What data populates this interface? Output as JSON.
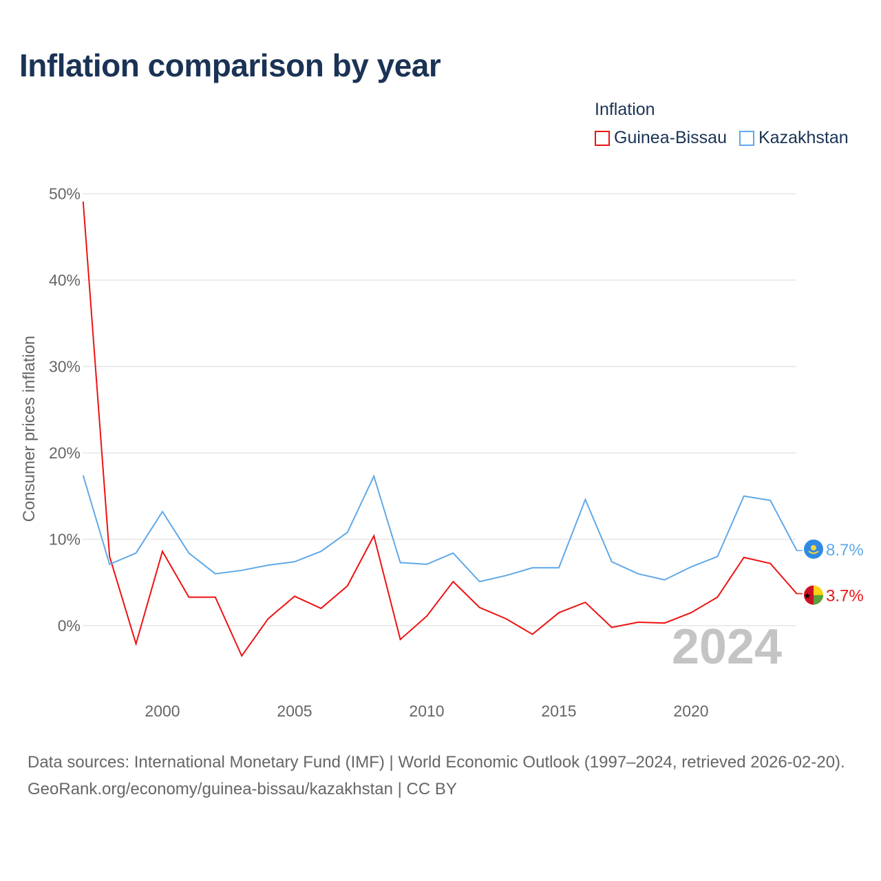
{
  "title": "Inflation comparison by year",
  "legend": {
    "title": "Inflation",
    "items": [
      {
        "label": "Guinea-Bissau",
        "color": "#ee1111"
      },
      {
        "label": "Kazakhstan",
        "color": "#5fa8e8"
      }
    ]
  },
  "year_watermark": "2024",
  "footer": {
    "sources": "Data sources: International Monetary Fund (IMF) | World Economic Outlook (1997–2024, retrieved 2026-02-20).",
    "credit": "GeoRank.org/economy/guinea-bissau/kazakhstan | CC BY"
  },
  "chart_data": {
    "type": "line",
    "title": "Inflation comparison by year",
    "xlabel": "",
    "ylabel": "Consumer prices inflation",
    "xlim": [
      1997,
      2024
    ],
    "ylim": [
      -8,
      50
    ],
    "x_ticks": [
      2000,
      2005,
      2010,
      2015,
      2020
    ],
    "y_ticks": [
      0,
      10,
      20,
      30,
      40,
      50
    ],
    "y_tick_labels": [
      "0%",
      "10%",
      "20%",
      "30%",
      "40%",
      "50%"
    ],
    "grid": true,
    "legend_position": "top-right",
    "x": [
      1997,
      1998,
      1999,
      2000,
      2001,
      2002,
      2003,
      2004,
      2005,
      2006,
      2007,
      2008,
      2009,
      2010,
      2011,
      2012,
      2013,
      2014,
      2015,
      2016,
      2017,
      2018,
      2019,
      2020,
      2021,
      2022,
      2023,
      2024
    ],
    "series": [
      {
        "name": "Guinea-Bissau",
        "color": "#ee1111",
        "end_label": "3.7%",
        "values": [
          49.1,
          8.0,
          -2.1,
          8.6,
          3.3,
          3.3,
          -3.5,
          0.8,
          3.4,
          2.0,
          4.6,
          10.4,
          -1.6,
          1.1,
          5.1,
          2.1,
          0.8,
          -1.0,
          1.5,
          2.7,
          -0.2,
          0.4,
          0.3,
          1.5,
          3.3,
          7.9,
          7.2,
          3.7
        ]
      },
      {
        "name": "Kazakhstan",
        "color": "#5fa8e8",
        "end_label": "8.7%",
        "values": [
          17.4,
          7.1,
          8.4,
          13.2,
          8.4,
          6.0,
          6.4,
          7.0,
          7.4,
          8.6,
          10.8,
          17.3,
          7.3,
          7.1,
          8.4,
          5.1,
          5.8,
          6.7,
          6.7,
          14.6,
          7.4,
          6.0,
          5.3,
          6.8,
          8.0,
          15.0,
          14.5,
          8.7
        ]
      }
    ]
  }
}
